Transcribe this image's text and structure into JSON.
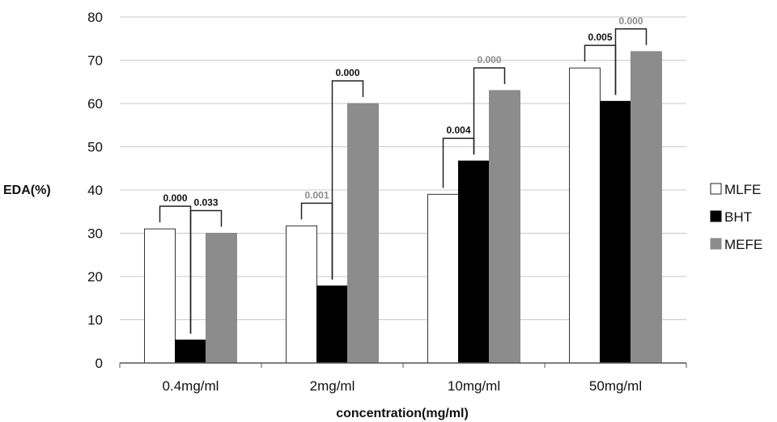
{
  "chart_data": {
    "type": "bar",
    "title": "",
    "xlabel": "concentration(mg/ml)",
    "ylabel": "EDA(%)",
    "ylim": [
      0,
      80
    ],
    "yticks": [
      "0",
      "10",
      "20",
      "30",
      "40",
      "50",
      "60",
      "70",
      "80"
    ],
    "categories": [
      "0.4mg/ml",
      "2mg/ml",
      "10mg/ml",
      "50mg/ml"
    ],
    "series": [
      {
        "name": "MLFE",
        "color": "#ffffff",
        "values": [
          31,
          31.7,
          39,
          68.2
        ]
      },
      {
        "name": "BHT",
        "color": "#000000",
        "values": [
          5.3,
          17.8,
          46.7,
          60.5
        ]
      },
      {
        "name": "MEFE",
        "color": "#8c8c8c",
        "values": [
          30,
          60,
          63,
          72
        ]
      }
    ],
    "legend_position": "right",
    "grid": "horizontal",
    "annotations": [
      {
        "category": 0,
        "from_series": 0,
        "to_series": 1,
        "label": "0.000",
        "color": "#111111"
      },
      {
        "category": 0,
        "from_series": 1,
        "to_series": 2,
        "label": "0.033",
        "color": "#111111"
      },
      {
        "category": 1,
        "from_series": 0,
        "to_series": 1,
        "label": "0.001",
        "color": "#8c8c8c"
      },
      {
        "category": 1,
        "from_series": 1,
        "to_series": 2,
        "label": "0.000",
        "color": "#111111"
      },
      {
        "category": 2,
        "from_series": 0,
        "to_series": 1,
        "label": "0.004",
        "color": "#111111"
      },
      {
        "category": 2,
        "from_series": 1,
        "to_series": 2,
        "label": "0.000",
        "color": "#8c8c8c"
      },
      {
        "category": 3,
        "from_series": 0,
        "to_series": 1,
        "label": "0.005",
        "color": "#111111"
      },
      {
        "category": 3,
        "from_series": 1,
        "to_series": 2,
        "label": "0.000",
        "color": "#8c8c8c"
      }
    ]
  }
}
